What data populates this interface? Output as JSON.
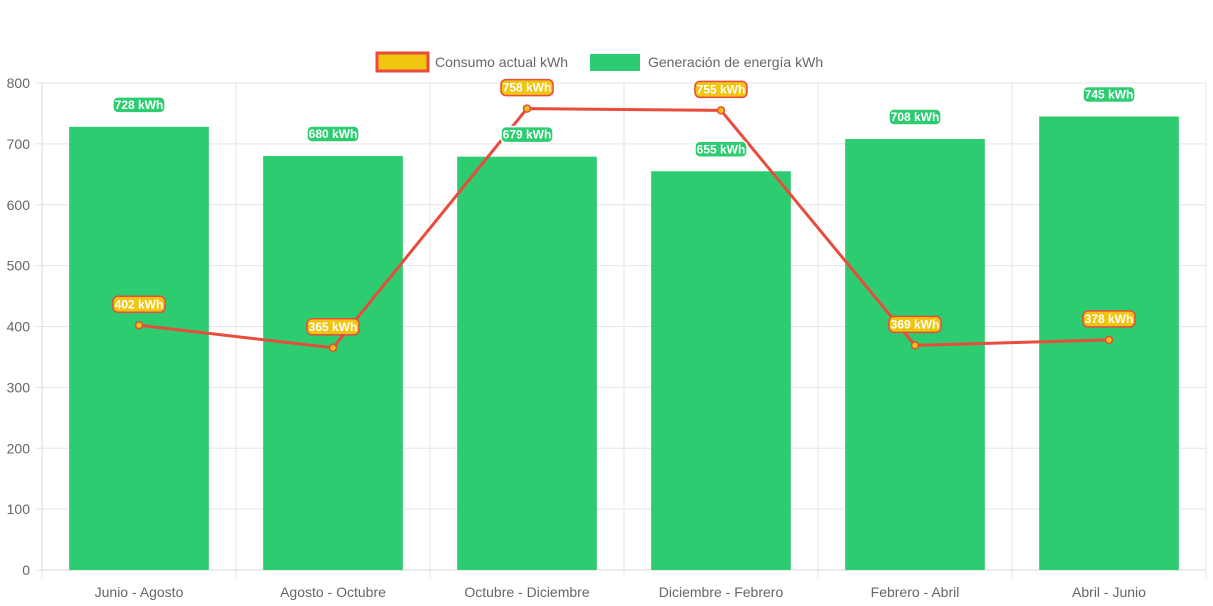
{
  "chart_data": {
    "type": "bar",
    "categories": [
      "Junio - Agosto",
      "Agosto - Octubre",
      "Octubre - Diciembre",
      "Diciembre - Febrero",
      "Febrero - Abril",
      "Abril - Junio"
    ],
    "series": [
      {
        "name": "Consumo actual kWh",
        "type": "line",
        "values": [
          402,
          365,
          758,
          755,
          369,
          378
        ],
        "labels": [
          "402 kWh",
          "365 kWh",
          "758 kWh",
          "755 kWh",
          "369 kWh",
          "378 kWh"
        ],
        "color": "#e74c3c",
        "fill": "#f1c40f"
      },
      {
        "name": "Generación de energía kWh",
        "type": "bar",
        "values": [
          728,
          680,
          679,
          655,
          708,
          745
        ],
        "labels": [
          "728 kWh",
          "680 kWh",
          "679 kWh",
          "655 kWh",
          "708 kWh",
          "745 kWh"
        ],
        "color": "#2ecc71"
      }
    ],
    "ylim": [
      0,
      800
    ],
    "yticks": [
      "0",
      "100",
      "200",
      "300",
      "400",
      "500",
      "600",
      "700",
      "800"
    ],
    "grid": true,
    "legend_position": "top"
  }
}
